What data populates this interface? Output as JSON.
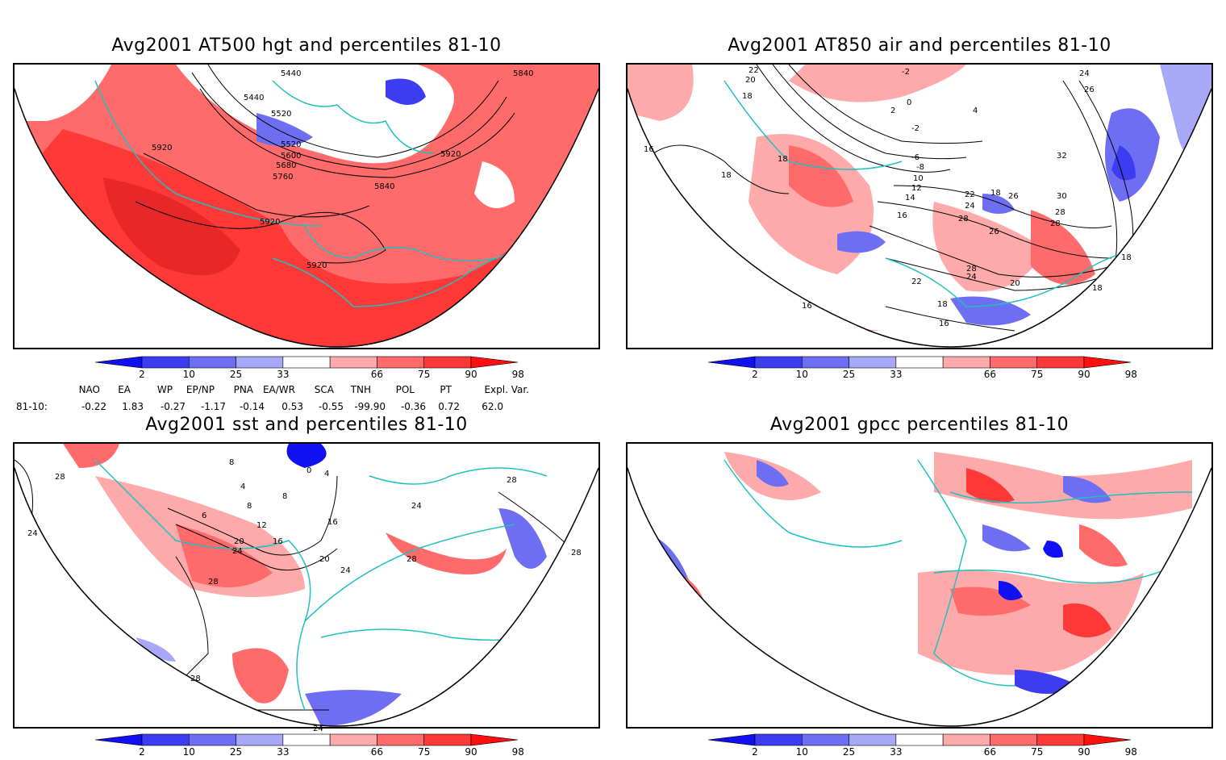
{
  "panels": [
    {
      "title": "Avg2001 AT500 hgt and percentiles 81-10",
      "contour_labels": [
        "5440",
        "5440",
        "5520",
        "5520",
        "5600",
        "5680",
        "5760",
        "5840",
        "5840",
        "5920",
        "5920",
        "5920",
        "5920"
      ]
    },
    {
      "title": "Avg2001 AT850 air and percentiles 81-10",
      "contour_labels": [
        "22",
        "20",
        "18",
        "16",
        "18",
        "2",
        "0",
        "-2",
        "-2",
        "-6",
        "-8",
        "10",
        "12",
        "14",
        "16",
        "18",
        "4",
        "18",
        "22",
        "24",
        "26",
        "28",
        "24",
        "26",
        "30",
        "32",
        "28",
        "28",
        "26",
        "18",
        "18",
        "28",
        "24",
        "22",
        "20",
        "18",
        "16",
        "16"
      ]
    },
    {
      "title": "Avg2001 sst and percentiles 81-10",
      "contour_labels": [
        "28",
        "24",
        "8",
        "4",
        "0",
        "4",
        "6",
        "8",
        "8",
        "12",
        "16",
        "20",
        "24",
        "20",
        "24",
        "28",
        "28",
        "24",
        "28",
        "16",
        "28",
        "28",
        "24"
      ]
    },
    {
      "title": "Avg2001 gpcc percentiles 81-10",
      "contour_labels": []
    }
  ],
  "colorbar": {
    "ticks": [
      "2",
      "10",
      "25",
      "33",
      "66",
      "75",
      "90",
      "98"
    ],
    "colors": [
      "#1010f0",
      "#3c3cf0",
      "#6e6ef2",
      "#a8a8f8",
      "#ffffff",
      "#ffaaaa",
      "#ff6b6b",
      "#ff3838",
      "#ff1010"
    ]
  },
  "indices": {
    "headers": [
      "NAO",
      "EA",
      "WP",
      "EP/NP",
      "PNA",
      "EA/WR",
      "SCA",
      "TNH",
      "POL",
      "PT",
      "Expl. Var."
    ],
    "row_label": "81-10:",
    "values": [
      "-0.22",
      "1.83",
      "-0.27",
      "-1.17",
      "-0.14",
      "0.53",
      "-0.55",
      "-99.90",
      "-0.36",
      "0.72",
      "62.0"
    ]
  },
  "colors": {
    "positive": "#ff3838",
    "negative": "#4a4af0",
    "coast": "#1fc0c0"
  }
}
